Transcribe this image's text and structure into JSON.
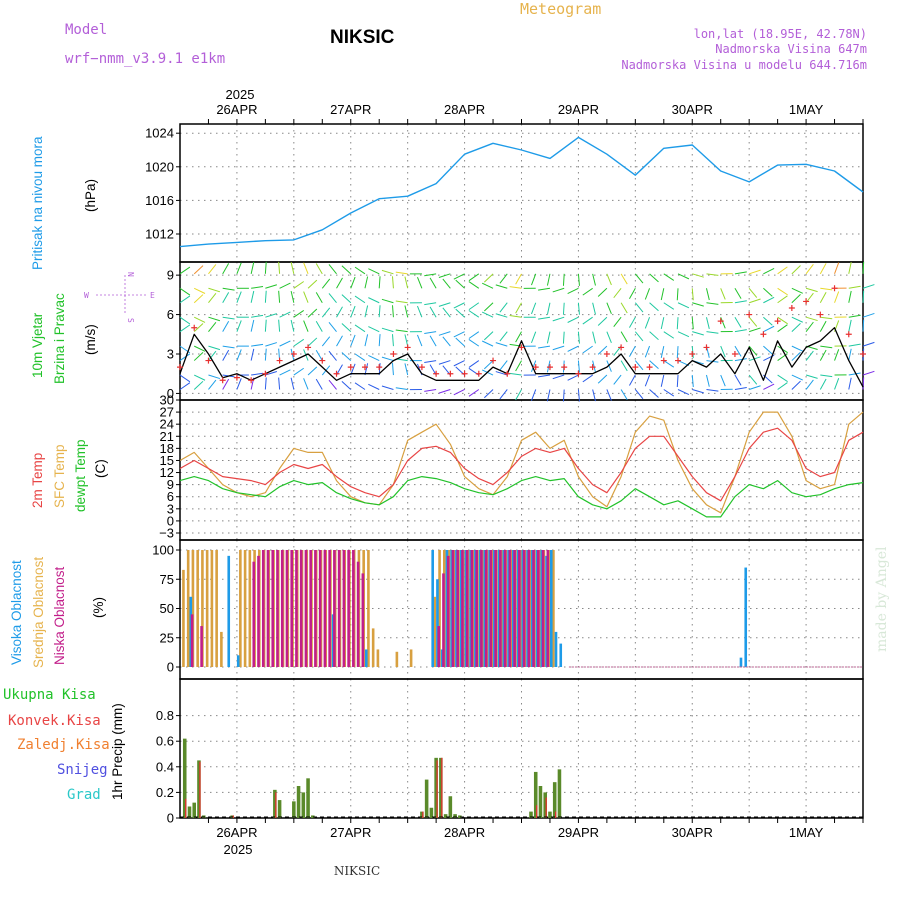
{
  "header": {
    "model_label": "Model",
    "model_name": "wrf−nmm_v3.9.1 e1km",
    "station": "NIKSIC",
    "meteogram_label": "Meteogram",
    "lonlat": "lon,lat (18.95E, 42.78N)",
    "elevation": "Nadmorska Visina 647m",
    "model_elevation": "Nadmorska Visina u modelu 644.716m",
    "watermark": "made by Angel",
    "footer_station": "NIKSIC"
  },
  "time_axis": {
    "year": "2025",
    "labels": [
      "26APR",
      "27APR",
      "28APR",
      "29APR",
      "30APR",
      "1MAY"
    ],
    "start_hour": -6,
    "end_hour": 138,
    "label_hours": [
      6,
      30,
      54,
      78,
      102,
      126
    ]
  },
  "colors": {
    "pressure": "#1e9be8",
    "wind_speed": "#000000",
    "gust": "#e83030",
    "temp2m": "#e84545",
    "sfc_temp": "#d8a040",
    "dewpoint": "#22c22a",
    "high_cloud": "#1e9be8",
    "mid_cloud": "#d8a040",
    "low_cloud": "#c21e8a",
    "precip_total": "#5a8a2a",
    "precip_conv": "#e83030",
    "grid": "#888888",
    "purple": "#b35fd8",
    "gold": "#e6b34d"
  },
  "chart_data": [
    {
      "type": "line",
      "name": "pressure",
      "ylabel": "Pritisak na nivou mora",
      "unit": "(hPa)",
      "y_ticks": [
        "1012",
        "1016",
        "1020",
        "1024"
      ],
      "ylim": [
        1009.5,
        1024.5
      ],
      "x_hours": [
        -6,
        0,
        6,
        12,
        18,
        24,
        30,
        36,
        42,
        48,
        54,
        60,
        66,
        72,
        78,
        84,
        90,
        96,
        102,
        108,
        114,
        120,
        126,
        132,
        138
      ],
      "values": [
        1010.5,
        1010.8,
        1011.0,
        1011.2,
        1011.3,
        1012.5,
        1014.5,
        1016.2,
        1016.5,
        1018.0,
        1021.5,
        1022.8,
        1022.0,
        1021.0,
        1023.5,
        1021.5,
        1019.0,
        1022.2,
        1022.6,
        1019.5,
        1018.2,
        1020.2,
        1020.3,
        1019.5,
        1017.0
      ]
    },
    {
      "type": "line",
      "name": "wind",
      "ylabel_1": "10m Vjetar",
      "ylabel_2": "Brzina i Pravac",
      "unit": "(m/s)",
      "y_ticks": [
        "0",
        "3",
        "6",
        "9"
      ],
      "ylim": [
        -0.5,
        10
      ],
      "compass": {
        "n": "N",
        "s": "S",
        "e": "E",
        "w": "W"
      },
      "series": [
        {
          "name": "speed",
          "x_hours": [
            -6,
            -3,
            0,
            3,
            6,
            9,
            12,
            15,
            18,
            21,
            24,
            27,
            30,
            33,
            36,
            39,
            42,
            45,
            48,
            51,
            54,
            57,
            60,
            63,
            66,
            69,
            72,
            75,
            78,
            81,
            84,
            87,
            90,
            93,
            96,
            99,
            102,
            105,
            108,
            111,
            114,
            117,
            120,
            123,
            126,
            129,
            132,
            135,
            138
          ],
          "values": [
            1.5,
            4.5,
            3.0,
            1.2,
            1.5,
            1.0,
            1.5,
            2.0,
            2.5,
            3.0,
            2.0,
            1.0,
            1.5,
            1.5,
            1.5,
            2.5,
            3.0,
            1.5,
            1.0,
            1.0,
            1.0,
            1.0,
            2.0,
            1.5,
            4.0,
            1.5,
            1.5,
            1.5,
            1.5,
            1.5,
            2.0,
            3.0,
            1.5,
            1.5,
            1.5,
            1.5,
            2.5,
            2.0,
            3.0,
            1.5,
            3.5,
            1.0,
            4.0,
            2.0,
            3.5,
            4.0,
            5.0,
            2.5,
            0.5
          ]
        },
        {
          "name": "gust",
          "x_hours": [
            -6,
            -3,
            0,
            3,
            6,
            9,
            12,
            15,
            18,
            21,
            24,
            27,
            30,
            33,
            36,
            39,
            42,
            45,
            48,
            51,
            54,
            57,
            60,
            63,
            66,
            69,
            72,
            75,
            78,
            81,
            84,
            87,
            90,
            93,
            96,
            99,
            102,
            105,
            108,
            111,
            114,
            117,
            120,
            123,
            126,
            129,
            132,
            135,
            138
          ],
          "values": [
            2.0,
            5.0,
            2.5,
            1.0,
            1.2,
            1.0,
            1.5,
            2.5,
            3.0,
            3.5,
            2.5,
            1.5,
            2.0,
            2.0,
            2.0,
            3.0,
            3.5,
            2.0,
            1.5,
            1.5,
            1.5,
            1.5,
            2.5,
            1.5,
            3.5,
            2.0,
            2.0,
            2.0,
            1.5,
            2.0,
            3.0,
            3.5,
            2.0,
            2.0,
            2.5,
            2.5,
            3.0,
            3.5,
            5.5,
            3.0,
            6.0,
            4.5,
            5.5,
            6.5,
            7.0,
            6.0,
            8.0,
            4.5,
            3.0
          ]
        }
      ]
    },
    {
      "type": "line",
      "name": "temperature",
      "ylabel_1": "2m Temp",
      "ylabel_2": "SFC Temp",
      "ylabel_3": "dewpt Temp",
      "unit": "(C)",
      "y_ticks": [
        "−3",
        "0",
        "3",
        "6",
        "9",
        "12",
        "15",
        "18",
        "21",
        "24",
        "27",
        "30"
      ],
      "ylim": [
        -3,
        30
      ],
      "x_hours": [
        -6,
        -3,
        0,
        3,
        6,
        9,
        12,
        15,
        18,
        21,
        24,
        27,
        30,
        33,
        36,
        39,
        42,
        45,
        48,
        51,
        54,
        57,
        60,
        63,
        66,
        69,
        72,
        75,
        78,
        81,
        84,
        87,
        90,
        93,
        96,
        99,
        102,
        105,
        108,
        111,
        114,
        117,
        120,
        123,
        126,
        129,
        132,
        135,
        138
      ],
      "series": [
        {
          "name": "2m Temp",
          "values": [
            13.0,
            15.0,
            13.0,
            11.0,
            10.5,
            10.0,
            9.0,
            12.0,
            14.0,
            13.0,
            14.0,
            11.0,
            8.5,
            7.0,
            6.0,
            9.0,
            15.0,
            18.0,
            18.5,
            17.0,
            13.0,
            10.5,
            9.0,
            12.0,
            16.0,
            18.0,
            17.0,
            18.0,
            13.0,
            9.0,
            7.0,
            12.0,
            18.0,
            21.0,
            21.0,
            16.0,
            11.0,
            7.0,
            5.0,
            11.0,
            18.0,
            22.0,
            23.0,
            20.0,
            13.0,
            11.0,
            12.0,
            20.0,
            22.0
          ]
        },
        {
          "name": "SFC Temp",
          "values": [
            15.0,
            17.0,
            13.0,
            9.0,
            7.0,
            6.0,
            7.0,
            13.0,
            18.0,
            17.0,
            17.0,
            10.0,
            6.0,
            4.5,
            4.0,
            9.0,
            20.0,
            22.0,
            24.0,
            19.0,
            11.0,
            8.0,
            6.5,
            11.0,
            20.0,
            22.0,
            18.0,
            20.0,
            11.0,
            6.0,
            3.5,
            11.0,
            22.0,
            26.0,
            25.0,
            15.0,
            8.0,
            4.0,
            2.0,
            11.0,
            22.0,
            27.0,
            27.0,
            21.0,
            10.0,
            8.0,
            9.0,
            24.0,
            27.0
          ]
        },
        {
          "name": "dewpt Temp",
          "values": [
            10.0,
            11.0,
            10.0,
            8.0,
            7.0,
            6.5,
            6.0,
            8.5,
            10.0,
            9.0,
            9.5,
            7.0,
            5.5,
            4.5,
            4.0,
            6.0,
            10.0,
            11.0,
            10.5,
            9.5,
            8.0,
            7.0,
            6.5,
            8.0,
            10.0,
            11.0,
            10.0,
            10.5,
            6.0,
            4.0,
            3.0,
            5.0,
            8.0,
            6.0,
            4.0,
            5.0,
            3.0,
            1.0,
            1.0,
            6.0,
            9.0,
            8.0,
            10.0,
            7.0,
            6.0,
            6.5,
            8.0,
            9.0,
            9.5
          ]
        }
      ]
    },
    {
      "type": "bar",
      "name": "cloud",
      "ylabel_1": "Visoka Oblacnost",
      "ylabel_2": "Srednja Oblacnost",
      "ylabel_3": "Niska Oblacnost",
      "unit": "(%)",
      "y_ticks": [
        "0",
        "25",
        "50",
        "75",
        "100"
      ],
      "ylim": [
        0,
        100
      ],
      "note": "hourly values; mid cloud 100% across dense band intervals",
      "high": {
        "x_hours": [
          -4,
          4,
          6,
          26,
          33,
          47,
          48,
          49,
          50,
          51,
          52,
          53,
          54,
          55,
          56,
          57,
          58,
          59,
          60,
          61,
          62,
          63,
          64,
          65,
          66,
          67,
          68,
          69,
          70,
          71,
          72,
          73,
          74,
          112,
          113
        ],
        "values": [
          60,
          95,
          10,
          45,
          15,
          100,
          75,
          15,
          100,
          100,
          100,
          100,
          100,
          100,
          100,
          100,
          100,
          100,
          100,
          100,
          100,
          100,
          100,
          100,
          100,
          100,
          100,
          100,
          100,
          95,
          100,
          30,
          20,
          8,
          85
        ]
      },
      "mid": {
        "x_hours": [
          -5,
          -4,
          -3,
          -2,
          -1,
          0,
          1,
          2,
          3,
          7,
          8,
          9,
          10,
          11,
          12,
          13,
          14,
          15,
          16,
          17,
          18,
          19,
          20,
          21,
          22,
          23,
          24,
          25,
          26,
          27,
          28,
          29,
          30,
          31,
          32,
          33,
          34,
          35,
          36,
          40,
          43,
          48,
          49,
          50,
          51,
          52,
          53,
          54,
          55,
          56,
          57,
          58,
          59,
          60,
          61,
          62,
          63,
          64,
          65,
          66,
          67,
          68,
          69,
          70,
          71,
          72,
          73
        ],
        "values": [
          83,
          100,
          100,
          100,
          100,
          100,
          100,
          100,
          30,
          100,
          100,
          100,
          100,
          100,
          100,
          100,
          100,
          100,
          100,
          100,
          100,
          100,
          100,
          100,
          100,
          100,
          100,
          100,
          100,
          100,
          100,
          100,
          100,
          100,
          100,
          100,
          100,
          33,
          15,
          13,
          15,
          60,
          100,
          100,
          100,
          100,
          100,
          100,
          100,
          100,
          100,
          100,
          100,
          100,
          100,
          100,
          100,
          100,
          100,
          100,
          100,
          100,
          100,
          100,
          100,
          100,
          100
        ]
      },
      "low": {
        "x_hours": [
          -4,
          -2,
          9,
          10,
          11,
          12,
          13,
          14,
          15,
          16,
          17,
          18,
          19,
          20,
          21,
          22,
          23,
          24,
          25,
          26,
          27,
          28,
          29,
          30,
          31,
          32,
          48,
          49,
          50,
          51,
          52,
          53,
          54,
          55,
          56,
          57,
          58,
          59,
          60,
          61,
          62,
          63,
          64,
          65,
          66,
          67,
          68,
          69,
          70,
          71
        ],
        "values": [
          45,
          35,
          90,
          95,
          100,
          100,
          100,
          100,
          100,
          100,
          100,
          100,
          100,
          100,
          100,
          100,
          100,
          100,
          100,
          100,
          100,
          100,
          100,
          100,
          90,
          80,
          35,
          80,
          95,
          100,
          100,
          100,
          100,
          100,
          100,
          100,
          100,
          100,
          100,
          100,
          100,
          100,
          100,
          100,
          100,
          100,
          100,
          100,
          100,
          100
        ]
      }
    },
    {
      "type": "bar",
      "name": "precip",
      "ylabel_1": "Ukupna Kisa",
      "ylabel_2": "Konvek.Kisa",
      "ylabel_3": "Zaledj.Kisa",
      "ylabel_4": "Snijeg",
      "ylabel_5": "Grad",
      "unit": "1hr Precip (mm)",
      "y_ticks": [
        "0",
        "0.2",
        "0.4",
        "0.6",
        "0.8"
      ],
      "ylim": [
        0,
        1.0
      ],
      "total": {
        "x_hours": [
          -5,
          -4,
          -3,
          -2,
          -1,
          5,
          14,
          15,
          18,
          19,
          20,
          21,
          22,
          45,
          46,
          47,
          48,
          49,
          50,
          51,
          52,
          53,
          68,
          69,
          70,
          71,
          72,
          73,
          74
        ],
        "values": [
          0.62,
          0.09,
          0.12,
          0.45,
          0.02,
          0.02,
          0.22,
          0.14,
          0.13,
          0.25,
          0.2,
          0.31,
          0.02,
          0.05,
          0.3,
          0.08,
          0.47,
          0.47,
          0.03,
          0.17,
          0.03,
          0.02,
          0.05,
          0.36,
          0.25,
          0.2,
          0.05,
          0.28,
          0.38
        ]
      },
      "convective": {
        "x_hours": [
          -5,
          -2,
          5,
          14,
          45,
          48,
          49,
          69,
          71,
          73
        ],
        "values": [
          0.15,
          0.44,
          0.02,
          0.2,
          0.05,
          0.45,
          0.47,
          0.1,
          0.16,
          0.05
        ]
      }
    }
  ]
}
